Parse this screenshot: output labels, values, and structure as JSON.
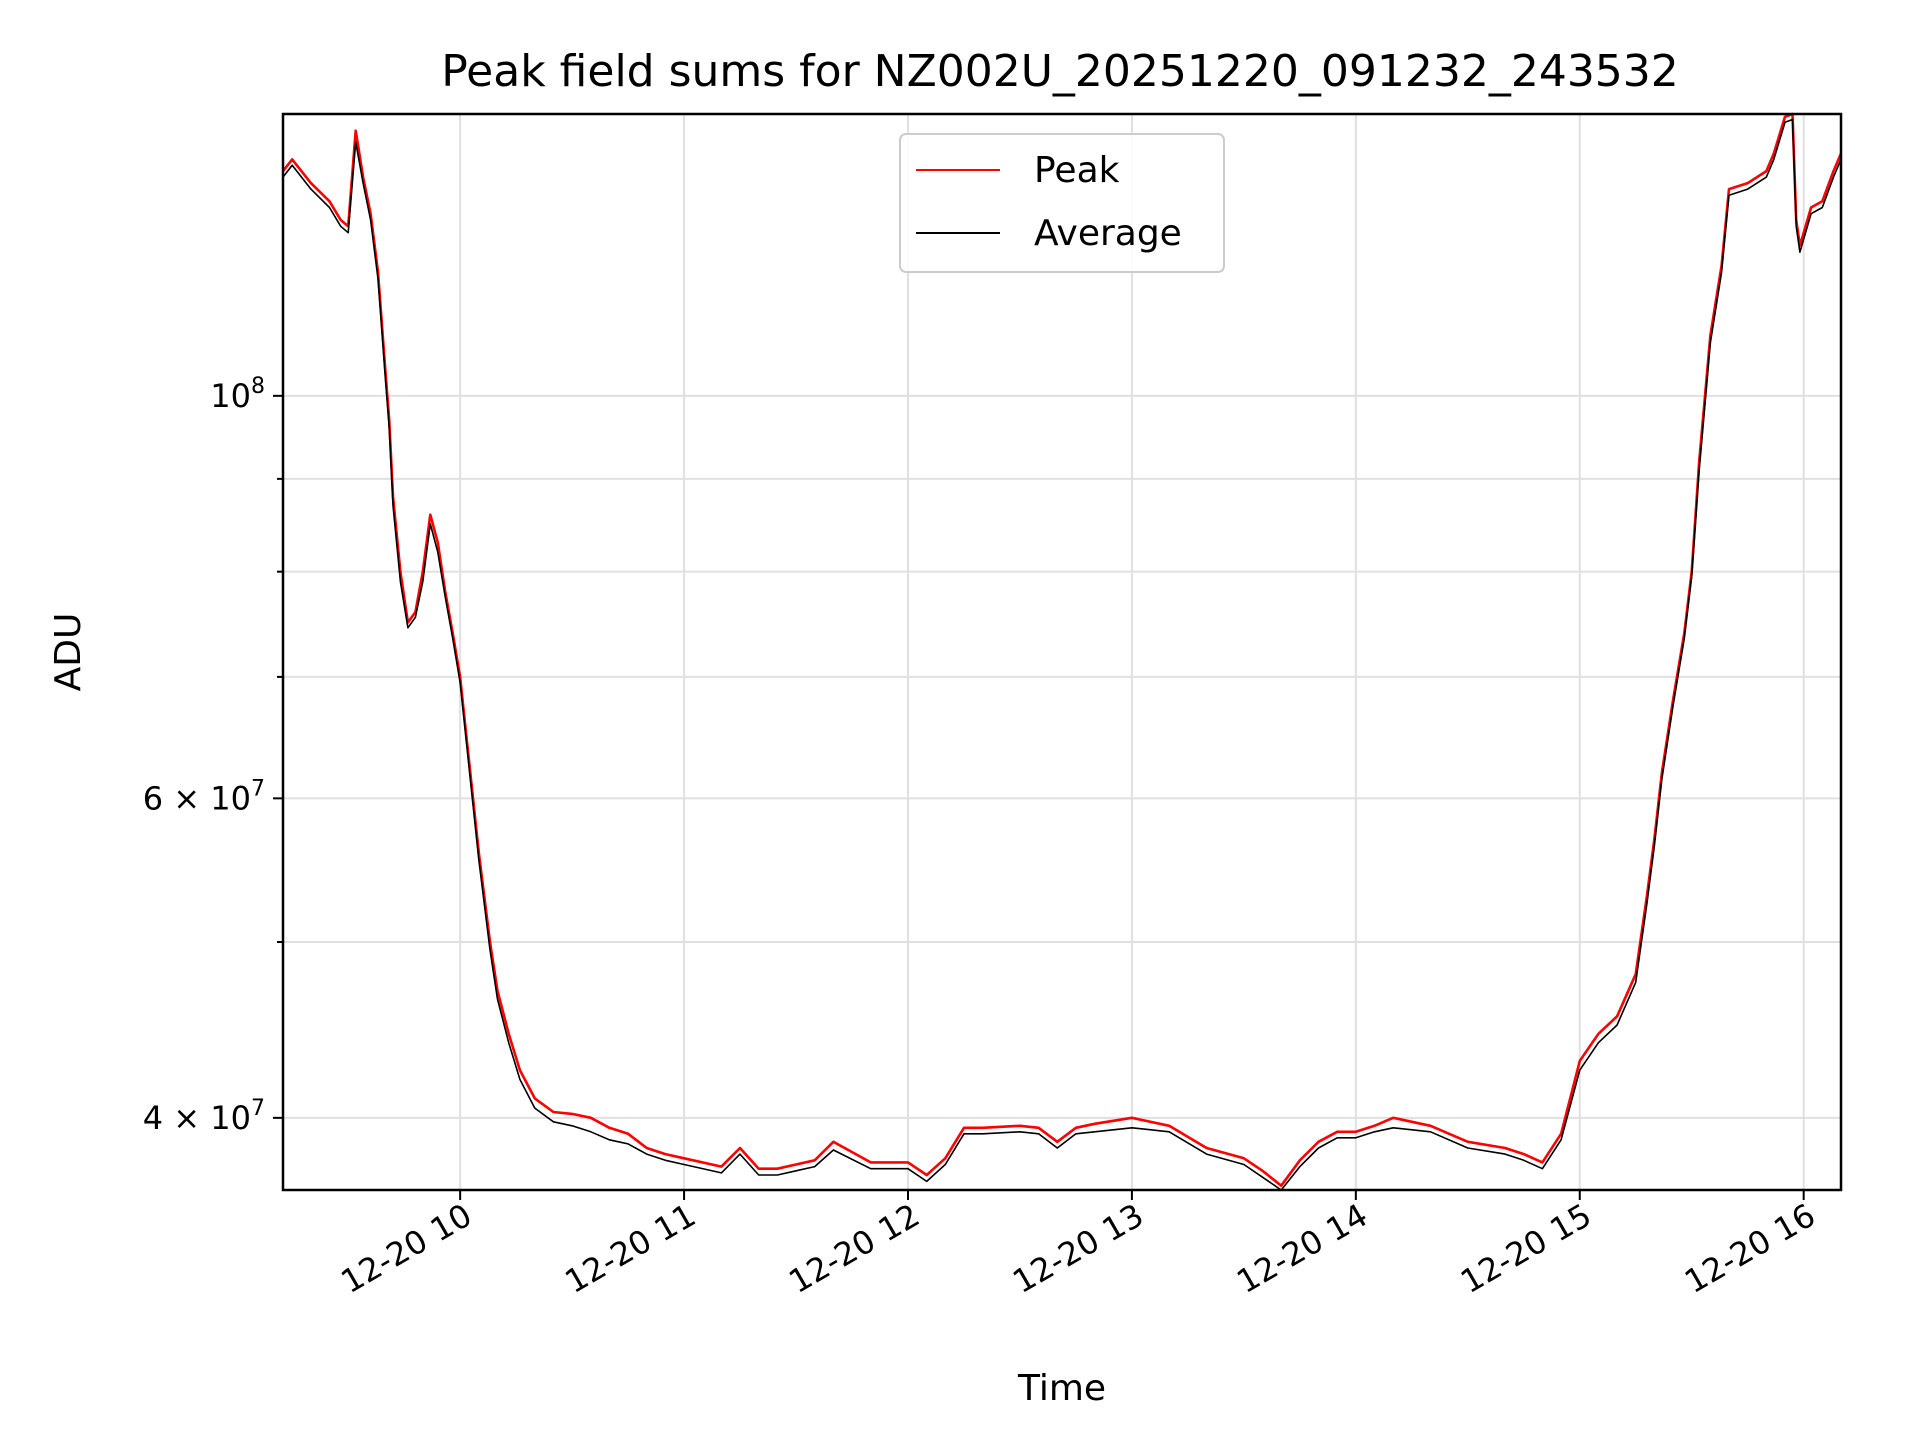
{
  "chart_data": {
    "type": "line",
    "title": "Peak field sums for NZ002U_20251220_091232_243532",
    "xlabel": "Time",
    "ylabel": "ADU",
    "y_scale": "log",
    "ylim": [
      36500000,
      143000000
    ],
    "xlim": [
      "2025-12-20T09:12:32",
      "2025-12-20T16:10:00"
    ],
    "x_ticks": [
      {
        "x": "2025-12-20T10:00",
        "label": "12-20 10"
      },
      {
        "x": "2025-12-20T11:00",
        "label": "12-20 11"
      },
      {
        "x": "2025-12-20T12:00",
        "label": "12-20 12"
      },
      {
        "x": "2025-12-20T13:00",
        "label": "12-20 13"
      },
      {
        "x": "2025-12-20T14:00",
        "label": "12-20 14"
      },
      {
        "x": "2025-12-20T15:00",
        "label": "12-20 15"
      },
      {
        "x": "2025-12-20T16:00",
        "label": "12-20 16"
      }
    ],
    "y_major_ticks": [
      {
        "value": 40000000,
        "mantissa": "4",
        "times": "×",
        "base": "10",
        "exp": "7"
      },
      {
        "value": 60000000,
        "mantissa": "6",
        "times": "×",
        "base": "10",
        "exp": "7"
      },
      {
        "value": 100000000,
        "mantissa": "",
        "times": "",
        "base": "10",
        "exp": "8"
      }
    ],
    "y_minor_ticks": [
      50000000,
      70000000,
      80000000,
      90000000
    ],
    "grid": true,
    "legend_position": "top-center",
    "series": [
      {
        "name": "Peak",
        "color": "#ff0000",
        "x": [
          "09:12:32",
          "09:15",
          "09:20",
          "09:25",
          "09:28",
          "09:30",
          "09:32",
          "09:34",
          "09:36",
          "09:38",
          "09:40",
          "09:41",
          "09:42",
          "09:44",
          "09:46",
          "09:48",
          "09:50",
          "09:52",
          "09:54",
          "09:56",
          "09:58",
          "10:00",
          "10:02",
          "10:05",
          "10:08",
          "10:10",
          "10:13",
          "10:16",
          "10:20",
          "10:25",
          "10:30",
          "10:35",
          "10:40",
          "10:45",
          "10:50",
          "10:55",
          "11:00",
          "11:10",
          "11:15",
          "11:20",
          "11:25",
          "11:30",
          "11:35",
          "11:40",
          "11:50",
          "12:00",
          "12:05",
          "12:10",
          "12:15",
          "12:20",
          "12:30",
          "12:35",
          "12:40",
          "12:45",
          "12:50",
          "13:00",
          "13:10",
          "13:20",
          "13:30",
          "13:35",
          "13:40",
          "13:45",
          "13:50",
          "13:55",
          "14:00",
          "14:05",
          "14:10",
          "14:20",
          "14:30",
          "14:40",
          "14:45",
          "14:50",
          "14:55",
          "15:00",
          "15:05",
          "15:10",
          "15:15",
          "15:18",
          "15:20",
          "15:22",
          "15:25",
          "15:28",
          "15:30",
          "15:32",
          "15:35",
          "15:38",
          "15:40",
          "15:45",
          "15:50",
          "15:52",
          "15:55",
          "15:57",
          "15:58",
          "15:59",
          "16:00",
          "16:02",
          "16:05",
          "16:08",
          "16:10"
        ],
        "y": [
          133000000,
          135000000,
          131000000,
          128000000,
          125000000,
          124000000,
          140000000,
          132000000,
          126000000,
          117000000,
          103000000,
          97000000,
          88000000,
          80000000,
          75000000,
          76000000,
          80000000,
          86000000,
          83000000,
          78000000,
          74000000,
          70000000,
          64000000,
          56000000,
          50000000,
          47000000,
          44500000,
          42500000,
          41000000,
          40300000,
          40200000,
          40000000,
          39500000,
          39200000,
          38500000,
          38200000,
          38000000,
          37600000,
          38500000,
          37500000,
          37500000,
          37700000,
          37900000,
          38800000,
          37800000,
          37800000,
          37200000,
          38000000,
          39500000,
          39500000,
          39600000,
          39500000,
          38800000,
          39500000,
          39700000,
          40000000,
          39600000,
          38500000,
          38000000,
          37400000,
          36700000,
          37900000,
          38800000,
          39300000,
          39300000,
          39600000,
          40000000,
          39600000,
          38800000,
          38500000,
          38200000,
          37800000,
          39200000,
          43000000,
          44500000,
          45500000,
          48000000,
          53000000,
          57000000,
          62000000,
          68000000,
          74000000,
          80000000,
          92000000,
          108000000,
          118000000,
          130000000,
          131000000,
          133000000,
          136000000,
          142500000,
          143000000,
          125000000,
          121000000,
          123000000,
          127000000,
          128000000,
          133000000,
          136000000
        ]
      },
      {
        "name": "Average",
        "color": "#000000",
        "x": [
          "09:12:32",
          "09:15",
          "09:20",
          "09:25",
          "09:28",
          "09:30",
          "09:32",
          "09:34",
          "09:36",
          "09:38",
          "09:40",
          "09:41",
          "09:42",
          "09:44",
          "09:46",
          "09:48",
          "09:50",
          "09:52",
          "09:54",
          "09:56",
          "09:58",
          "10:00",
          "10:02",
          "10:05",
          "10:08",
          "10:10",
          "10:13",
          "10:16",
          "10:20",
          "10:25",
          "10:30",
          "10:35",
          "10:40",
          "10:45",
          "10:50",
          "10:55",
          "11:00",
          "11:10",
          "11:15",
          "11:20",
          "11:25",
          "11:30",
          "11:35",
          "11:40",
          "11:50",
          "12:00",
          "12:05",
          "12:10",
          "12:15",
          "12:20",
          "12:30",
          "12:35",
          "12:40",
          "12:45",
          "12:50",
          "13:00",
          "13:10",
          "13:20",
          "13:30",
          "13:35",
          "13:40",
          "13:45",
          "13:50",
          "13:55",
          "14:00",
          "14:05",
          "14:10",
          "14:20",
          "14:30",
          "14:40",
          "14:45",
          "14:50",
          "14:55",
          "15:00",
          "15:05",
          "15:10",
          "15:15",
          "15:18",
          "15:20",
          "15:22",
          "15:25",
          "15:28",
          "15:30",
          "15:32",
          "15:35",
          "15:38",
          "15:40",
          "15:45",
          "15:50",
          "15:52",
          "15:55",
          "15:57",
          "15:58",
          "15:59",
          "16:00",
          "16:02",
          "16:05",
          "16:08",
          "16:10"
        ],
        "y": [
          132000000,
          134000000,
          130000000,
          127000000,
          124000000,
          123000000,
          138000000,
          131000000,
          125000000,
          116000000,
          102000000,
          96000000,
          87000000,
          79000000,
          74500000,
          75500000,
          79000000,
          85000000,
          82000000,
          77500000,
          73500000,
          69500000,
          63500000,
          55500000,
          49500000,
          46500000,
          44000000,
          42000000,
          40500000,
          39800000,
          39600000,
          39300000,
          38900000,
          38700000,
          38200000,
          37900000,
          37700000,
          37300000,
          38200000,
          37200000,
          37200000,
          37400000,
          37600000,
          38400000,
          37500000,
          37500000,
          36900000,
          37700000,
          39200000,
          39200000,
          39300000,
          39200000,
          38500000,
          39200000,
          39300000,
          39500000,
          39300000,
          38200000,
          37700000,
          37100000,
          36500000,
          37600000,
          38500000,
          39000000,
          39000000,
          39300000,
          39500000,
          39300000,
          38500000,
          38200000,
          37900000,
          37500000,
          38900000,
          42500000,
          44000000,
          45000000,
          47500000,
          52500000,
          56500000,
          61500000,
          67500000,
          73500000,
          79500000,
          91000000,
          107000000,
          117000000,
          129000000,
          130000000,
          132000000,
          135000000,
          141500000,
          142000000,
          124000000,
          120000000,
          122000000,
          126000000,
          127000000,
          132000000,
          135000000
        ]
      }
    ]
  }
}
